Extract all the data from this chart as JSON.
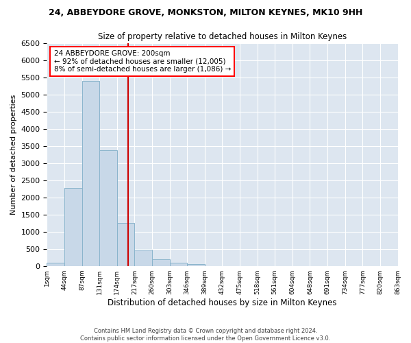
{
  "title": "24, ABBEYDORE GROVE, MONKSTON, MILTON KEYNES, MK10 9HH",
  "subtitle": "Size of property relative to detached houses in Milton Keynes",
  "xlabel": "Distribution of detached houses by size in Milton Keynes",
  "ylabel": "Number of detached properties",
  "footer_line1": "Contains HM Land Registry data © Crown copyright and database right 2024.",
  "footer_line2": "Contains public sector information licensed under the Open Government Licence v3.0.",
  "annotation_line1": "24 ABBEYDORE GROVE: 200sqm",
  "annotation_line2": "← 92% of detached houses are smaller (12,005)",
  "annotation_line3": "8% of semi-detached houses are larger (1,086) →",
  "bar_color": "#c8d8e8",
  "bar_edgecolor": "#8ab4cc",
  "vline_color": "#cc0000",
  "vline_x": 4.65,
  "background_color": "#dde6f0",
  "ylim": [
    0,
    6500
  ],
  "yticks": [
    0,
    500,
    1000,
    1500,
    2000,
    2500,
    3000,
    3500,
    4000,
    4500,
    5000,
    5500,
    6000,
    6500
  ],
  "bin_labels": [
    "1sqm",
    "44sqm",
    "87sqm",
    "131sqm",
    "174sqm",
    "217sqm",
    "260sqm",
    "303sqm",
    "346sqm",
    "389sqm",
    "432sqm",
    "475sqm",
    "518sqm",
    "561sqm",
    "604sqm",
    "648sqm",
    "691sqm",
    "734sqm",
    "777sqm",
    "820sqm",
    "863sqm"
  ],
  "bar_values": [
    100,
    2280,
    5400,
    3380,
    1250,
    480,
    190,
    100,
    55,
    0,
    0,
    0,
    0,
    0,
    0,
    0,
    0,
    0,
    0,
    0
  ],
  "n_bins": 20
}
